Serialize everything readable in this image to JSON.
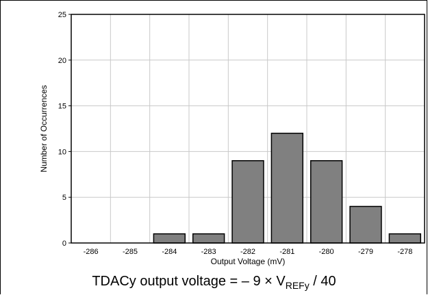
{
  "chart_data": {
    "type": "bar",
    "categories": [
      "-286",
      "-285",
      "-284",
      "-283",
      "-282",
      "-281",
      "-280",
      "-279",
      "-278"
    ],
    "values": [
      0,
      0,
      1,
      1,
      9,
      12,
      9,
      4,
      1
    ],
    "xlabel": "Output Voltage (mV)",
    "ylabel": "Number of Occurrences",
    "ylim": [
      0,
      25
    ],
    "yticks": [
      0,
      5,
      10,
      15,
      20,
      25
    ],
    "grid": true,
    "bar_color": "#808080"
  },
  "caption": {
    "prefix": "TDACy output voltage = ",
    "minus": "–",
    "expr": " 9 × V",
    "subscript": "REFy",
    "suffix": " / 40"
  }
}
